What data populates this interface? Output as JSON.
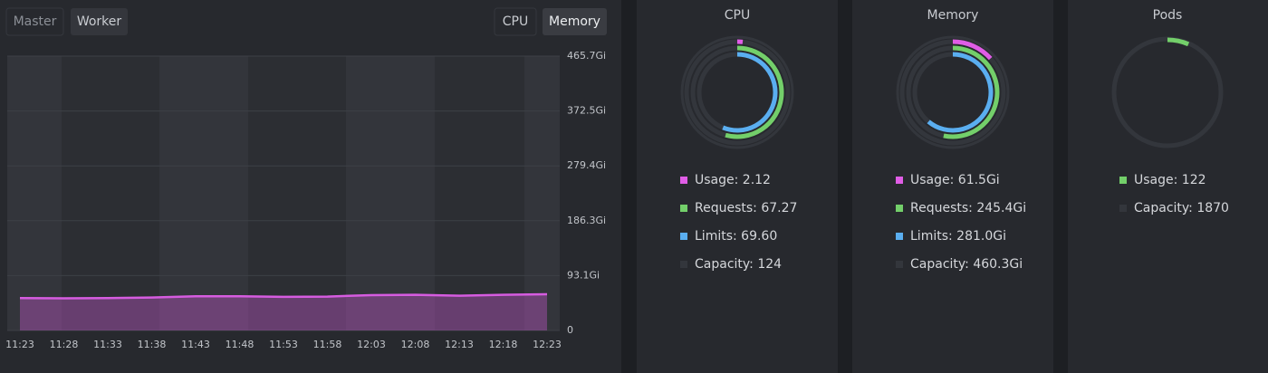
{
  "controls": {
    "node_tabs": [
      "Master",
      "Worker"
    ],
    "metric_tabs": [
      "CPU",
      "Memory"
    ]
  },
  "chart_data": [
    {
      "type": "area",
      "x": [
        "11:23",
        "11:28",
        "11:33",
        "11:38",
        "11:43",
        "11:48",
        "11:53",
        "11:58",
        "12:03",
        "12:08",
        "12:13",
        "12:18",
        "12:23"
      ],
      "values": [
        55,
        54.5,
        55,
        56,
        58,
        58,
        57,
        57.5,
        60,
        60.5,
        59,
        60.5,
        61.5
      ],
      "color": "#d65ce0",
      "ylim": [
        0,
        465.7
      ],
      "yticks": [
        {
          "value": 465.7,
          "label": "465.7Gi"
        },
        {
          "value": 372.5,
          "label": "372.5Gi"
        },
        {
          "value": 279.4,
          "label": "279.4Gi"
        },
        {
          "value": 186.3,
          "label": "186.3Gi"
        },
        {
          "value": 93.1,
          "label": "93.1Gi"
        },
        0
      ],
      "grid": true
    },
    {
      "type": "radial",
      "title": "CPU",
      "series": [
        {
          "name": "Usage: 2.12",
          "color": "#e05de6",
          "values": [
            2.12
          ]
        },
        {
          "name": "Requests: 67.27",
          "color": "#73cf6a",
          "values": [
            67.27
          ]
        },
        {
          "name": "Limits: 69.60",
          "color": "#5aaef0",
          "values": [
            69.6
          ]
        },
        {
          "name": "Capacity: 124",
          "color": "#33363c",
          "values": [
            124
          ]
        }
      ]
    },
    {
      "type": "radial",
      "title": "Memory",
      "series": [
        {
          "name": "Usage: 61.5Gi",
          "color": "#e05de6",
          "values": [
            61.5
          ]
        },
        {
          "name": "Requests: 245.4Gi",
          "color": "#73cf6a",
          "values": [
            245.4
          ]
        },
        {
          "name": "Limits: 281.0Gi",
          "color": "#5aaef0",
          "values": [
            281.0
          ]
        },
        {
          "name": "Capacity: 460.3Gi",
          "color": "#33363c",
          "values": [
            460.3
          ]
        }
      ]
    },
    {
      "type": "radial",
      "title": "Pods",
      "series": [
        {
          "name": "Usage: 122",
          "color": "#73cf6a",
          "values": [
            122
          ]
        },
        {
          "name": "Capacity: 1870",
          "color": "#33363c",
          "values": [
            1870
          ]
        }
      ]
    }
  ]
}
